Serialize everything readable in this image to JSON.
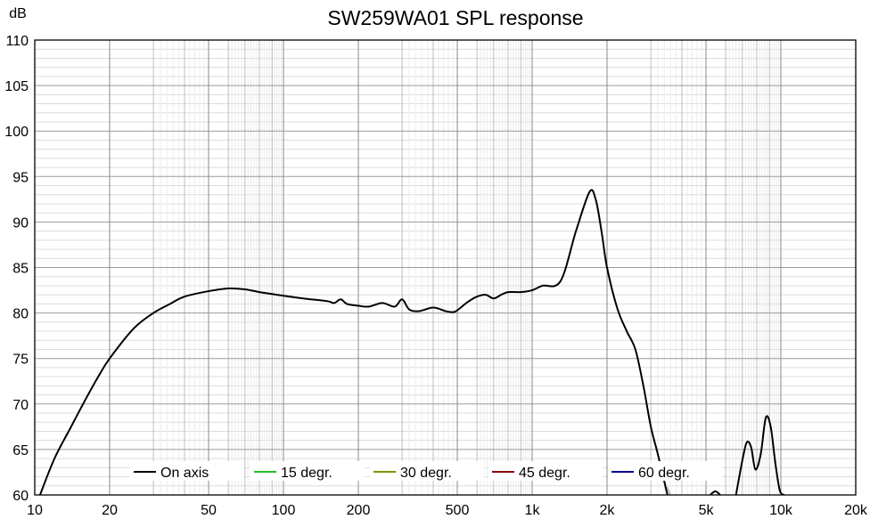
{
  "chart_data": {
    "type": "line",
    "title": "SW259WA01 SPL response",
    "ylabel": "dB",
    "xlabel": "",
    "x_scale": "log",
    "xlim": [
      10,
      20000
    ],
    "ylim": [
      60,
      110
    ],
    "grid": true,
    "legend_placement": "bottom",
    "x_ticks": [
      {
        "value": 10,
        "label": "10"
      },
      {
        "value": 20,
        "label": "20"
      },
      {
        "value": 50,
        "label": "50"
      },
      {
        "value": 100,
        "label": "100"
      },
      {
        "value": 200,
        "label": "200"
      },
      {
        "value": 500,
        "label": "500"
      },
      {
        "value": 1000,
        "label": "1k"
      },
      {
        "value": 2000,
        "label": "2k"
      },
      {
        "value": 5000,
        "label": "5k"
      },
      {
        "value": 10000,
        "label": "10k"
      },
      {
        "value": 20000,
        "label": "20k"
      }
    ],
    "y_ticks": [
      {
        "value": 60,
        "label": "60"
      },
      {
        "value": 65,
        "label": "65"
      },
      {
        "value": 70,
        "label": "70"
      },
      {
        "value": 75,
        "label": "75"
      },
      {
        "value": 80,
        "label": "80"
      },
      {
        "value": 85,
        "label": "85"
      },
      {
        "value": 90,
        "label": "90"
      },
      {
        "value": 95,
        "label": "95"
      },
      {
        "value": 100,
        "label": "100"
      },
      {
        "value": 105,
        "label": "105"
      },
      {
        "value": 110,
        "label": "110"
      }
    ],
    "series": [
      {
        "name": "On axis",
        "color": "#000000",
        "x": [
          10.5,
          12,
          14,
          16,
          18,
          20,
          25,
          30,
          35,
          40,
          50,
          60,
          70,
          80,
          100,
          120,
          150,
          160,
          170,
          180,
          200,
          220,
          250,
          280,
          300,
          320,
          350,
          400,
          450,
          480,
          500,
          550,
          600,
          650,
          700,
          750,
          800,
          900,
          1000,
          1100,
          1300,
          1500,
          1700,
          1800,
          1900,
          2000,
          2200,
          2400,
          2600,
          2800,
          3000,
          3200,
          3500
        ],
        "values": [
          60,
          64,
          67.5,
          70.5,
          73,
          75,
          78.3,
          80,
          81,
          81.8,
          82.4,
          82.7,
          82.6,
          82.3,
          81.9,
          81.6,
          81.3,
          81.1,
          81.5,
          81,
          80.8,
          80.7,
          81.1,
          80.7,
          81.5,
          80.4,
          80.2,
          80.6,
          80.2,
          80.1,
          80.3,
          81.2,
          81.8,
          82,
          81.6,
          82,
          82.3,
          82.3,
          82.5,
          83,
          83.5,
          89,
          93.3,
          92.5,
          89,
          85,
          80.5,
          78,
          76,
          72,
          67.5,
          64.5,
          60
        ]
      },
      {
        "name": "",
        "color": "#bbbbbb",
        "x": [
          3500,
          3700
        ],
        "values": [
          60.8,
          59
        ]
      },
      {
        "name": "",
        "color": "#000000",
        "x": [
          5200,
          5450,
          5700
        ],
        "values": [
          60,
          60.4,
          60
        ]
      },
      {
        "name": "",
        "color": "#000000",
        "x": [
          6600,
          7000,
          7300,
          7600,
          7900,
          8300,
          8700,
          9100,
          9500,
          9900,
          10300
        ],
        "values": [
          60,
          63.8,
          65.8,
          65.2,
          62.8,
          64.5,
          68.5,
          67.5,
          63.5,
          60.5,
          60
        ]
      },
      {
        "name": "15 degr.",
        "color": "#22bb22",
        "x": [],
        "values": []
      },
      {
        "name": "30 degr.",
        "color": "#779900",
        "x": [],
        "values": []
      },
      {
        "name": "45 degr.",
        "color": "#880000",
        "x": [],
        "values": []
      },
      {
        "name": "60 degr.",
        "color": "#000099",
        "x": [],
        "values": []
      }
    ],
    "legend": [
      {
        "label": "On axis",
        "color": "#000000"
      },
      {
        "label": "15 degr.",
        "color": "#22bb22"
      },
      {
        "label": "30 degr.",
        "color": "#779900"
      },
      {
        "label": "45 degr.",
        "color": "#880000"
      },
      {
        "label": "60 degr.",
        "color": "#000099"
      }
    ]
  }
}
